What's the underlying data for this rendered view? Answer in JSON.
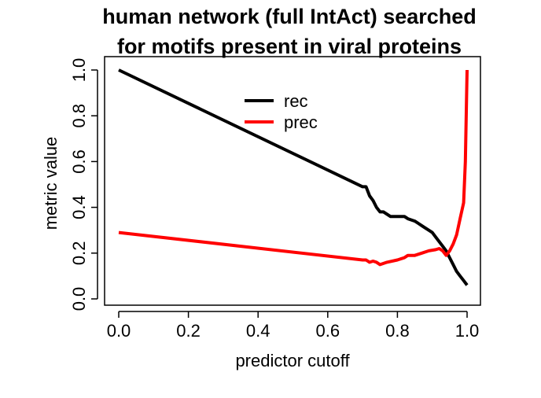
{
  "chart_data": {
    "type": "line",
    "title_lines": [
      "human network (full IntAct) searched",
      "for motifs present in viral proteins"
    ],
    "xlabel": "predictor cutoff",
    "ylabel": "metric value",
    "xlim": [
      0.0,
      1.0
    ],
    "ylim": [
      0.0,
      1.0
    ],
    "x_ticks": [
      "0.0",
      "0.2",
      "0.4",
      "0.6",
      "0.8",
      "1.0"
    ],
    "y_ticks": [
      "0.0",
      "0.2",
      "0.4",
      "0.6",
      "0.8",
      "1.0"
    ],
    "grid": false,
    "legend": "top-center",
    "series": [
      {
        "name": "rec",
        "color": "#000000",
        "points": [
          [
            0.0,
            1.0
          ],
          [
            0.7,
            0.49
          ],
          [
            0.71,
            0.49
          ],
          [
            0.72,
            0.45
          ],
          [
            0.73,
            0.43
          ],
          [
            0.74,
            0.4
          ],
          [
            0.75,
            0.38
          ],
          [
            0.76,
            0.38
          ],
          [
            0.77,
            0.37
          ],
          [
            0.78,
            0.36
          ],
          [
            0.8,
            0.36
          ],
          [
            0.82,
            0.36
          ],
          [
            0.83,
            0.35
          ],
          [
            0.85,
            0.34
          ],
          [
            0.86,
            0.33
          ],
          [
            0.87,
            0.32
          ],
          [
            0.88,
            0.31
          ],
          [
            0.89,
            0.3
          ],
          [
            0.9,
            0.29
          ],
          [
            0.91,
            0.27
          ],
          [
            0.92,
            0.25
          ],
          [
            0.93,
            0.23
          ],
          [
            0.94,
            0.21
          ],
          [
            0.95,
            0.18
          ],
          [
            0.96,
            0.15
          ],
          [
            0.97,
            0.12
          ],
          [
            0.98,
            0.1
          ],
          [
            0.99,
            0.08
          ],
          [
            1.0,
            0.06
          ]
        ]
      },
      {
        "name": "prec",
        "color": "#ff0000",
        "points": [
          [
            0.0,
            0.29
          ],
          [
            0.7,
            0.17
          ],
          [
            0.71,
            0.17
          ],
          [
            0.72,
            0.16
          ],
          [
            0.73,
            0.165
          ],
          [
            0.74,
            0.16
          ],
          [
            0.75,
            0.15
          ],
          [
            0.77,
            0.16
          ],
          [
            0.8,
            0.17
          ],
          [
            0.82,
            0.18
          ],
          [
            0.83,
            0.19
          ],
          [
            0.85,
            0.19
          ],
          [
            0.87,
            0.2
          ],
          [
            0.89,
            0.21
          ],
          [
            0.91,
            0.215
          ],
          [
            0.92,
            0.22
          ],
          [
            0.93,
            0.21
          ],
          [
            0.94,
            0.19
          ],
          [
            0.95,
            0.21
          ],
          [
            0.96,
            0.24
          ],
          [
            0.97,
            0.28
          ],
          [
            0.98,
            0.35
          ],
          [
            0.99,
            0.42
          ],
          [
            0.995,
            0.6
          ],
          [
            1.0,
            1.0
          ]
        ]
      }
    ]
  }
}
